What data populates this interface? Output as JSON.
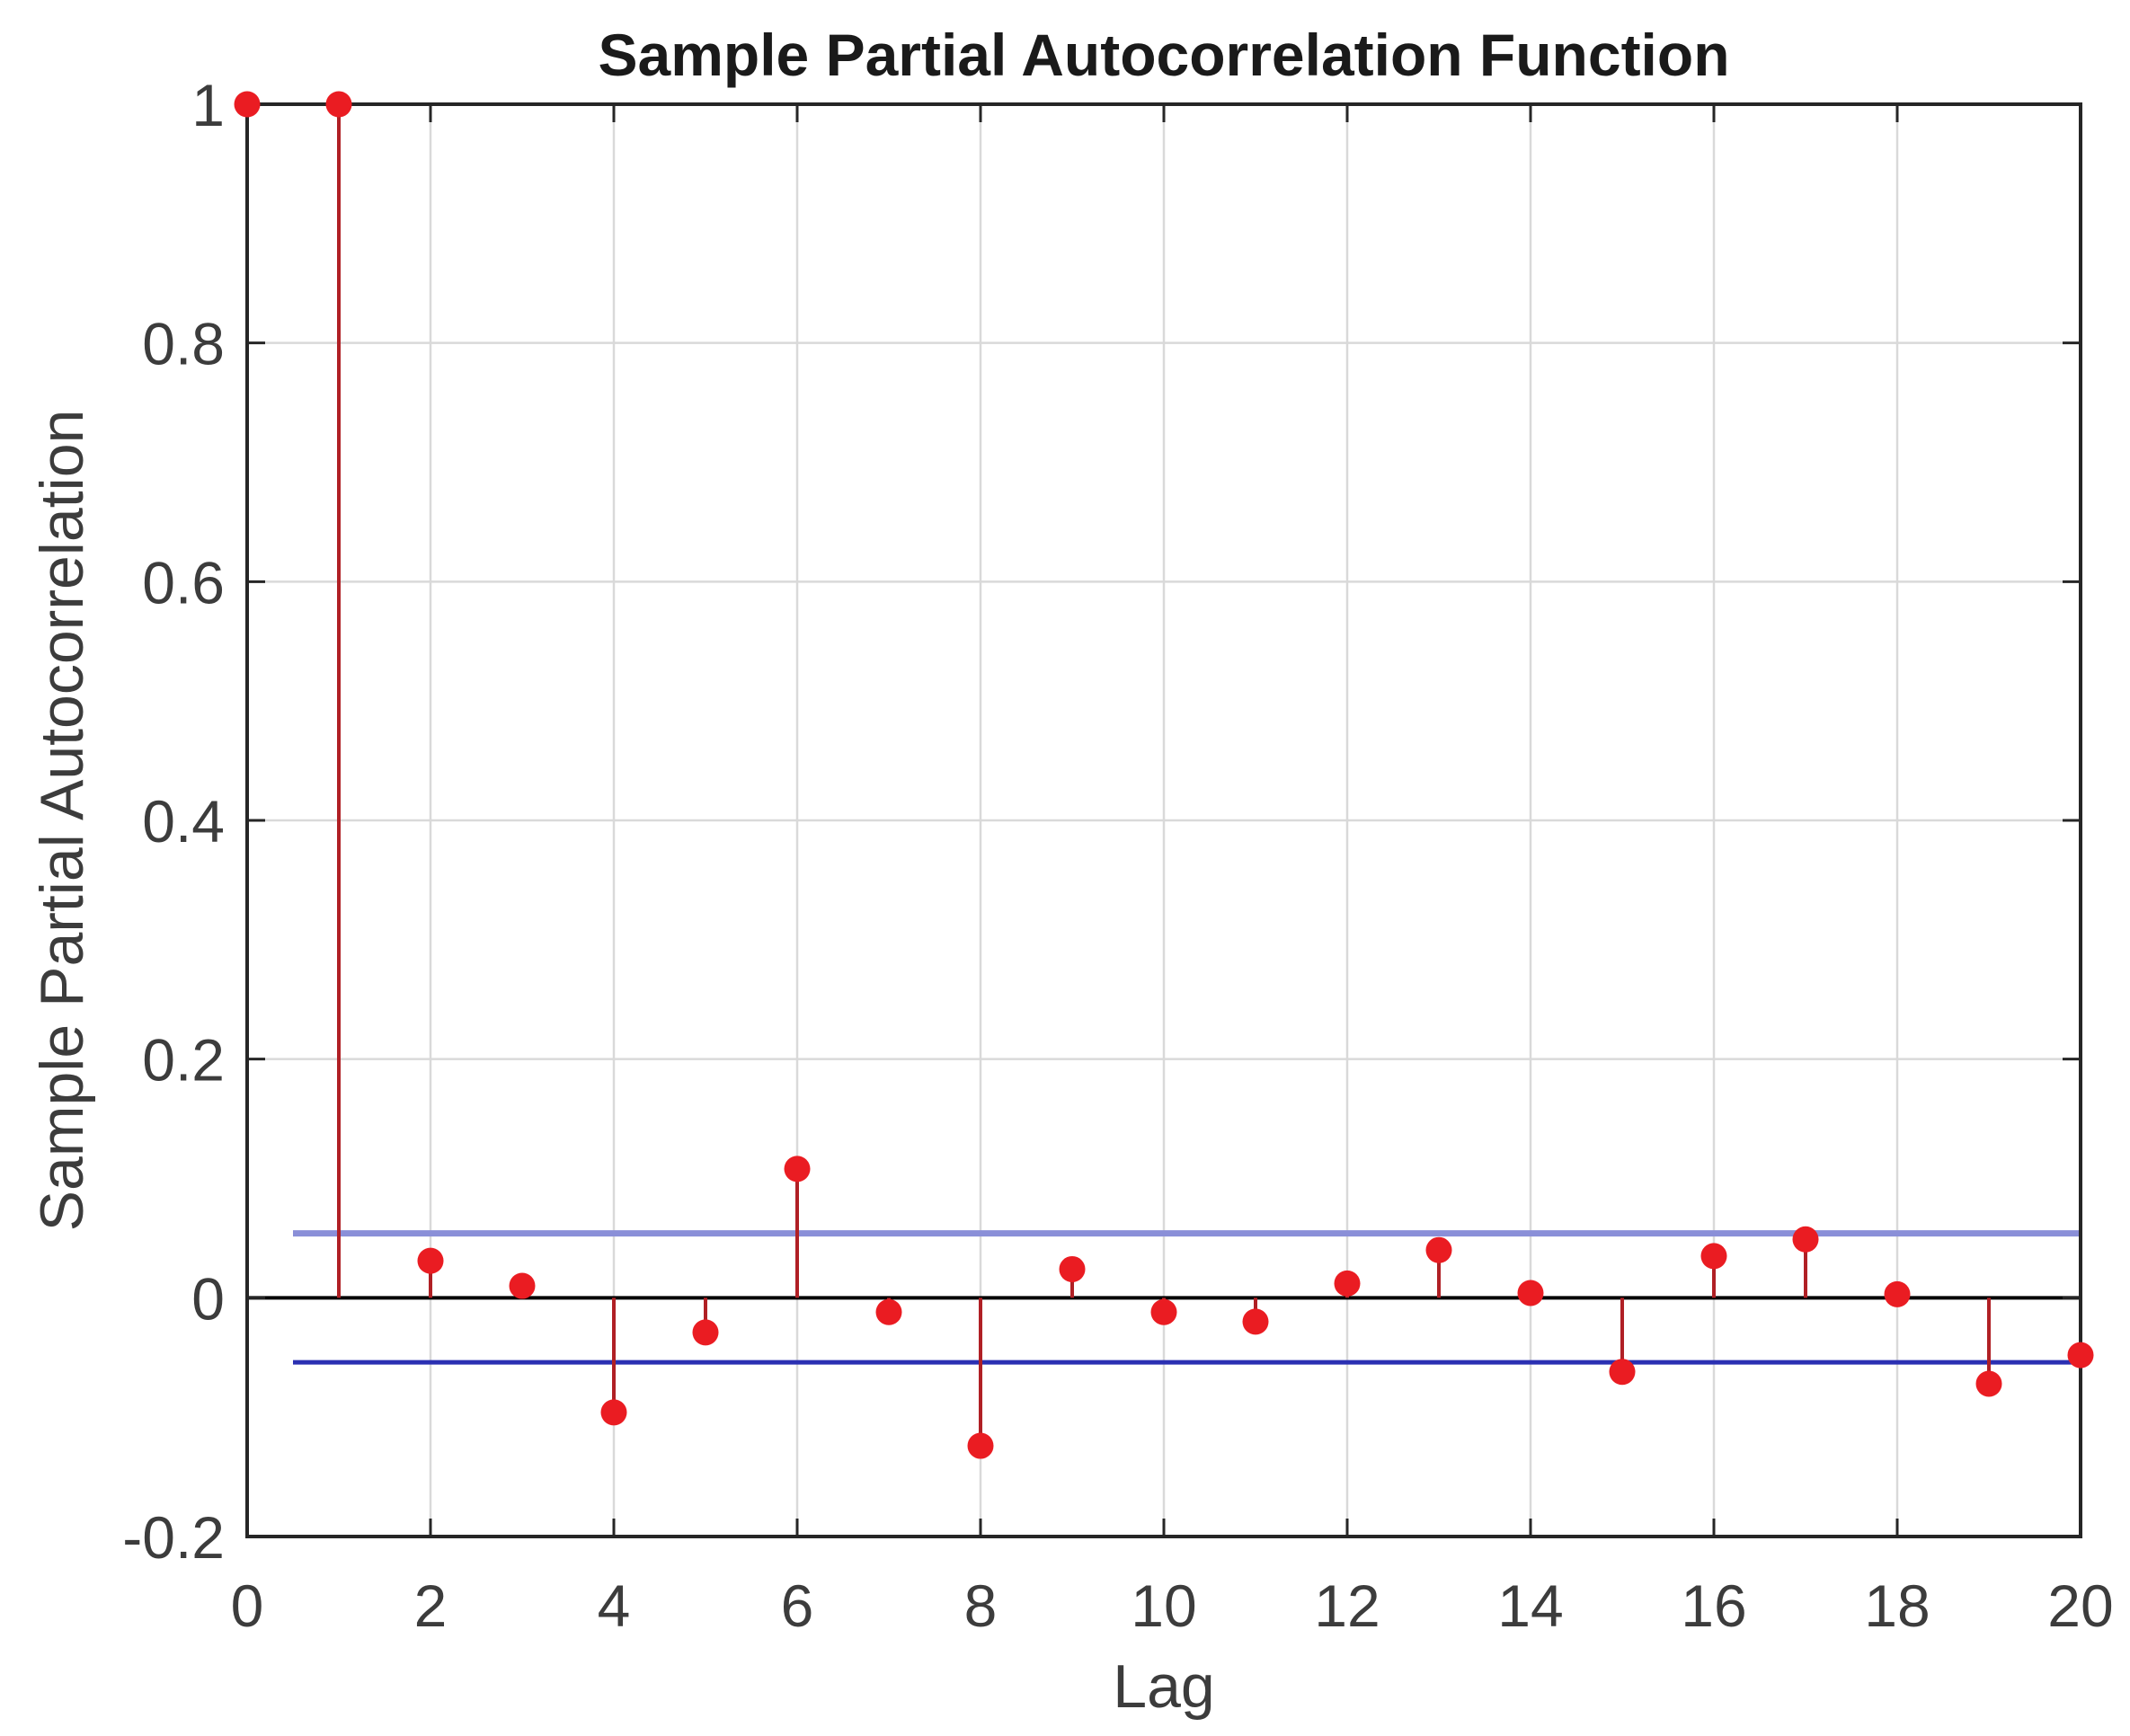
{
  "figure": {
    "background": "#ffffff"
  },
  "chart_data": {
    "type": "stem",
    "title": "Sample Partial Autocorrelation Function",
    "xlabel": "Lag",
    "ylabel": "Sample Partial Autocorrelation",
    "x": [
      0,
      1,
      2,
      3,
      4,
      5,
      6,
      7,
      8,
      9,
      10,
      11,
      12,
      13,
      14,
      15,
      16,
      17,
      18,
      19,
      20
    ],
    "values": [
      1.0,
      1.0,
      0.031,
      0.01,
      -0.096,
      -0.029,
      0.108,
      -0.012,
      -0.124,
      0.024,
      -0.012,
      -0.02,
      0.012,
      0.04,
      0.004,
      -0.062,
      0.035,
      0.049,
      0.003,
      -0.072,
      -0.048
    ],
    "confidence_bounds": {
      "upper": 0.054,
      "lower": -0.054,
      "x_start": 0.5,
      "x_end": 20
    },
    "xlim": [
      0,
      20
    ],
    "ylim": [
      -0.2,
      1
    ],
    "xticks": [
      0,
      2,
      4,
      6,
      8,
      10,
      12,
      14,
      16,
      18,
      20
    ],
    "xtick_labels": [
      "0",
      "2",
      "4",
      "6",
      "8",
      "10",
      "12",
      "14",
      "16",
      "18",
      "20"
    ],
    "yticks": [
      -0.2,
      0,
      0.2,
      0.4,
      0.6,
      0.8,
      1
    ],
    "ytick_labels": [
      "-0.2",
      "0",
      "0.2",
      "0.4",
      "0.6",
      "0.8",
      "1"
    ],
    "grid": true,
    "legend": "none",
    "colors": {
      "stem": "#b02025",
      "marker": "#ea1c22",
      "conf_upper": "#8a8fd8",
      "conf_lower": "#2b30b2",
      "zero_line": "#000000",
      "grid": "#d9d9d9",
      "axis": "#262626",
      "text": "#3c3c3c"
    }
  }
}
